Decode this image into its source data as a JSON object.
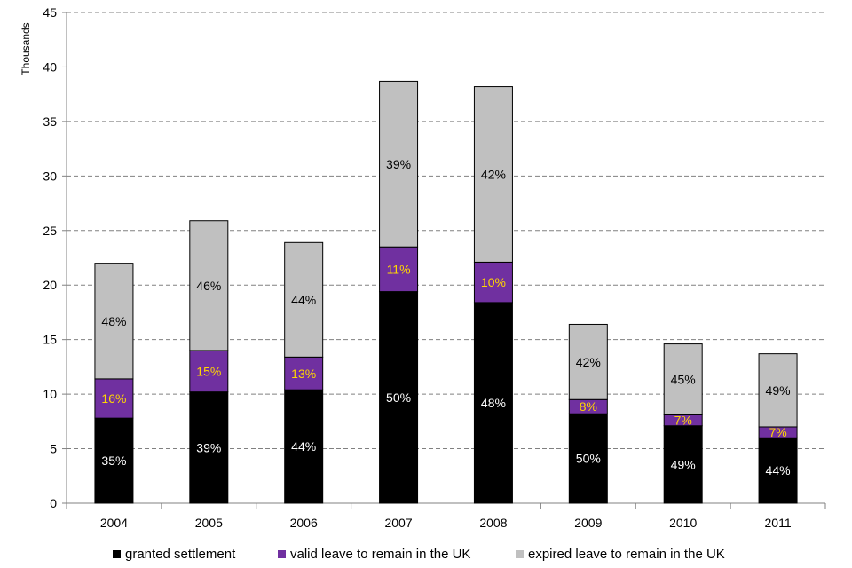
{
  "chart_data": {
    "type": "bar",
    "stacked": true,
    "categories": [
      "2004",
      "2005",
      "2006",
      "2007",
      "2008",
      "2009",
      "2010",
      "2011"
    ],
    "ylabel": "Thousands",
    "ylim": [
      0,
      45
    ],
    "yticks": [
      "0",
      "5",
      "10",
      "15",
      "20",
      "25",
      "30",
      "35",
      "40",
      "45"
    ],
    "grid": true,
    "legend_position": "bottom",
    "series": [
      {
        "name": "granted settlement",
        "color": "#000000",
        "label_color": "#ffffff",
        "values": [
          7.8,
          10.2,
          10.4,
          19.4,
          18.4,
          8.2,
          7.1,
          6.0
        ],
        "labels": [
          "35%",
          "39%",
          "44%",
          "50%",
          "48%",
          "50%",
          "49%",
          "44%"
        ]
      },
      {
        "name": "valid leave to remain in the UK",
        "color": "#7030a0",
        "label_color": "#ffd700",
        "values": [
          3.6,
          3.8,
          3.0,
          4.1,
          3.7,
          1.3,
          1.0,
          1.0
        ],
        "labels": [
          "16%",
          "15%",
          "13%",
          "11%",
          "10%",
          "8%",
          "7%",
          "7%"
        ]
      },
      {
        "name": "expired leave to remain in the UK",
        "color": "#c0c0c0",
        "label_color": "#000000",
        "values": [
          10.6,
          11.9,
          10.5,
          15.2,
          16.1,
          6.9,
          6.5,
          6.7
        ],
        "labels": [
          "48%",
          "46%",
          "44%",
          "39%",
          "42%",
          "42%",
          "45%",
          "49%"
        ]
      }
    ]
  }
}
